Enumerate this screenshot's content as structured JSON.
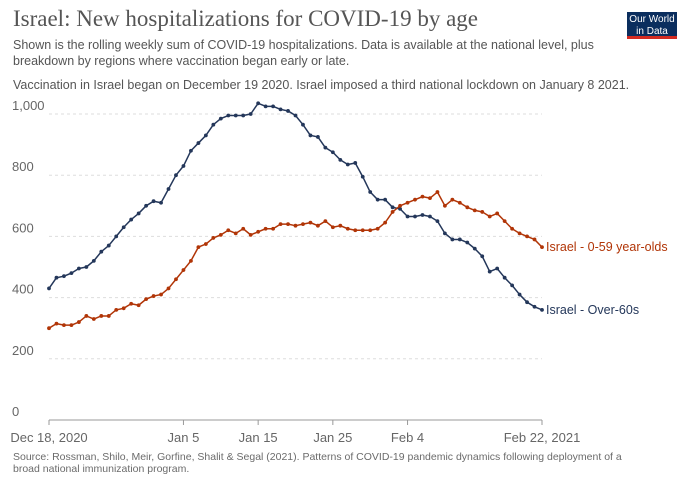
{
  "header": {
    "title": "Israel: New hospitalizations for COVID-19 by age",
    "subtitle": "Shown is the rolling weekly sum of COVID-19 hospitalizations. Data is available at the national level, plus breakdown by regions where vaccination began early or late.",
    "note": "Vaccination in Israel began on December 19 2020. Israel imposed a third national lockdown on January 8 2021."
  },
  "logo": {
    "line1": "Our World",
    "line2": "in Data"
  },
  "source": "Source: Rossman, Shilo, Meir, Gorfine, Shalit & Segal (2021). Patterns of COVID-19 pandemic dynamics following deployment of a broad national immunization program.",
  "colors": {
    "over60": "#24375a",
    "under60": "#b13507",
    "grid": "#dddddd",
    "axis": "#666666"
  },
  "chart_data": {
    "type": "line",
    "x_start": "2020-12-18",
    "x_end": "2021-02-22",
    "x_ticks": [
      {
        "date": "2020-12-18",
        "label": "Dec 18, 2020"
      },
      {
        "date": "2021-01-05",
        "label": "Jan 5"
      },
      {
        "date": "2021-01-15",
        "label": "Jan 15"
      },
      {
        "date": "2021-01-25",
        "label": "Jan 25"
      },
      {
        "date": "2021-02-04",
        "label": "Feb 4"
      },
      {
        "date": "2021-02-22",
        "label": "Feb 22, 2021"
      }
    ],
    "ylim": [
      0,
      1000
    ],
    "y_ticks": [
      0,
      200,
      400,
      600,
      800,
      1000
    ],
    "y_tick_labels": [
      "0",
      "200",
      "400",
      "600",
      "800",
      "1,000"
    ],
    "grid": true,
    "legend": "end-of-line labels",
    "series": [
      {
        "name": "Israel - Over-60s",
        "color": "#24375a",
        "values": [
          430,
          465,
          470,
          480,
          495,
          500,
          520,
          550,
          570,
          600,
          630,
          655,
          675,
          700,
          715,
          710,
          755,
          800,
          830,
          880,
          905,
          930,
          965,
          985,
          995,
          995,
          995,
          1000,
          1035,
          1025,
          1025,
          1015,
          1010,
          995,
          965,
          930,
          925,
          890,
          875,
          850,
          835,
          840,
          795,
          745,
          720,
          720,
          695,
          690,
          665,
          665,
          670,
          665,
          650,
          610,
          590,
          590,
          580,
          560,
          535,
          485,
          495,
          465,
          440,
          410,
          385,
          370,
          360
        ]
      },
      {
        "name": "Israel - 0-59 year-olds",
        "color": "#b13507",
        "values": [
          300,
          315,
          310,
          310,
          320,
          340,
          330,
          340,
          340,
          360,
          365,
          380,
          375,
          395,
          405,
          410,
          430,
          460,
          490,
          520,
          565,
          575,
          595,
          605,
          620,
          610,
          625,
          605,
          615,
          625,
          625,
          640,
          640,
          635,
          640,
          645,
          635,
          650,
          630,
          635,
          625,
          620,
          620,
          620,
          625,
          645,
          680,
          700,
          710,
          720,
          730,
          725,
          745,
          700,
          720,
          710,
          695,
          685,
          680,
          665,
          675,
          650,
          625,
          610,
          600,
          590,
          565
        ]
      }
    ]
  }
}
